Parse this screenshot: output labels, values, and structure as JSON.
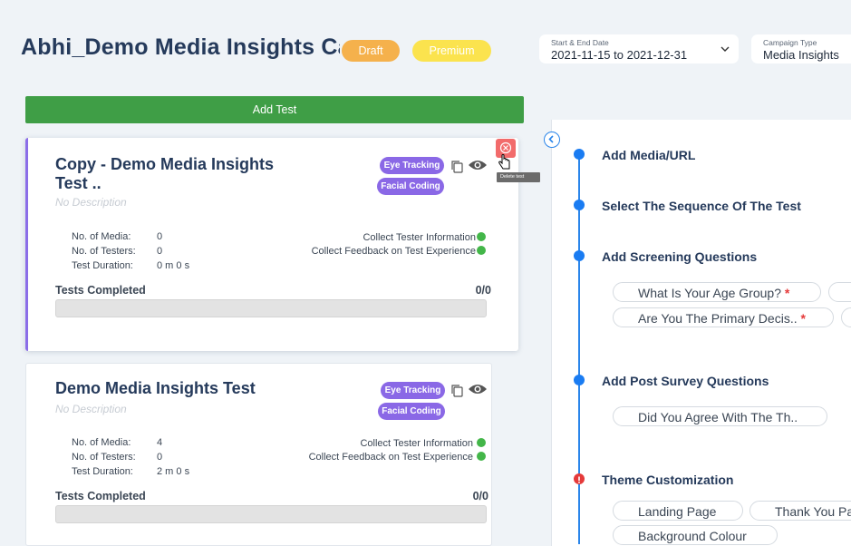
{
  "header": {
    "title": "Abhi_Demo Media Insights Campaign",
    "status_badge": "Draft",
    "plan_badge": "Premium",
    "date_filter": {
      "label": "Start & End Date",
      "value": "2021-11-15 to 2021-12-31"
    },
    "campaign_type": {
      "label": "Campaign Type",
      "value": "Media Insights"
    }
  },
  "add_test_label": "Add Test",
  "tooltip_text": "Delete test",
  "tests": [
    {
      "title": "Copy - Demo Media Insights Test ..",
      "description": "No Description",
      "tags": [
        "Eye Tracking",
        "Facial Coding"
      ],
      "stats": [
        {
          "label": "No. of Media:",
          "value": "0"
        },
        {
          "label": "No. of Testers:",
          "value": "0"
        },
        {
          "label": "Test Duration:",
          "value": "0 m 0 s"
        }
      ],
      "options": [
        "Collect Tester Information",
        "Collect Feedback on Test Experience"
      ],
      "completed_label": "Tests Completed",
      "completed_value": "0/0",
      "progress": 0
    },
    {
      "title": "Demo Media Insights Test",
      "description": "No Description",
      "tags": [
        "Eye Tracking",
        "Facial Coding"
      ],
      "stats": [
        {
          "label": "No. of Media:",
          "value": "4"
        },
        {
          "label": "No. of Testers:",
          "value": "0"
        },
        {
          "label": "Test Duration:",
          "value": "2 m 0 s"
        }
      ],
      "options": [
        "Collect Tester Information",
        "Collect Feedback on Test Experience"
      ],
      "completed_label": "Tests Completed",
      "completed_value": "0/0",
      "progress": 0
    }
  ],
  "steps": [
    {
      "title": "Add Media/URL",
      "status": "ok"
    },
    {
      "title": "Select The Sequence Of The Test",
      "status": "ok"
    },
    {
      "title": "Add Screening Questions",
      "status": "ok",
      "chips": [
        "What Is Your Age Group?",
        "Are You The Primary Decis.."
      ]
    },
    {
      "title": "Add Post Survey Questions",
      "status": "ok",
      "chips": [
        "Did You Agree With The Th.."
      ]
    },
    {
      "title": "Theme Customization",
      "status": "error",
      "chips": [
        "Landing Page",
        "Thank You Page",
        "Background Colour"
      ]
    }
  ],
  "colors": {
    "primary": "#1a7cf2",
    "add_button": "#3f9e46",
    "tag": "#8a68e6",
    "draft": "#f5b14c",
    "premium": "#fbe34e",
    "error": "#e53a3a"
  }
}
